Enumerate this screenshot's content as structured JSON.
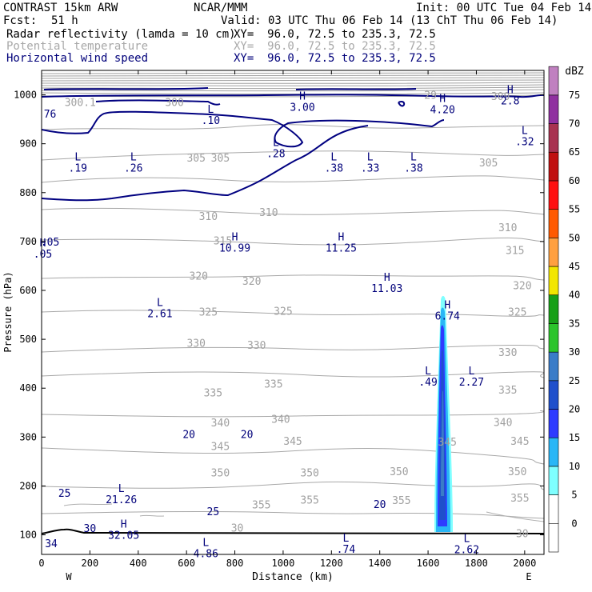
{
  "header": {
    "model": "CONTRAST 15km ARW",
    "center": "NCAR/MMM",
    "init": "Init: 00 UTC Tue 04 Feb 14",
    "fcst_label": "Fcst:",
    "fcst_value": "51 h",
    "valid": "Valid: 03 UTC Thu 06 Feb 14 (13 ChT Thu 06 Feb 14)",
    "fields": [
      {
        "name": "Radar reflectivity (lamda = 10 cm)",
        "xy": "XY=  96.0, 72.5 to 235.3, 72.5"
      },
      {
        "name": "Potential temperature",
        "xy": "XY=  96.0, 72.5 to 235.3, 72.5"
      },
      {
        "name": "Horizontal wind speed",
        "xy": "XY=  96.0, 72.5 to 235.3, 72.5"
      }
    ]
  },
  "chart_data": {
    "type": "contour-cross-section",
    "xlabel": "Distance (km)",
    "ylabel": "Pressure (hPa)",
    "xlim": [
      0,
      2080
    ],
    "ylim": [
      1050,
      60
    ],
    "x_ticks": [
      0,
      200,
      400,
      600,
      800,
      1000,
      1200,
      1400,
      1600,
      1800,
      2000
    ],
    "y_ticks": [
      100,
      200,
      300,
      400,
      500,
      600,
      700,
      800,
      900,
      1000
    ],
    "x_end_labels": {
      "left": "W",
      "right": "E"
    },
    "colorbar": {
      "unit": "dBZ",
      "levels": [
        0,
        5,
        10,
        15,
        20,
        25,
        30,
        35,
        40,
        45,
        50,
        55,
        60,
        65,
        70,
        75
      ],
      "colors": [
        "#ffffff",
        "#7fffff",
        "#29b6f6",
        "#2e3bff",
        "#1f4fcc",
        "#3a7cc8",
        "#2cc42c",
        "#18a018",
        "#f2e600",
        "#ffa040",
        "#ff5a00",
        "#ff1010",
        "#c01010",
        "#a83250",
        "#9030a0",
        "#c080c0"
      ]
    },
    "theta_labels": [
      {
        "v": "355",
        "x": 910,
        "p": 162
      },
      {
        "v": "355",
        "x": 1110,
        "p": 172
      },
      {
        "v": "355",
        "x": 1490,
        "p": 171
      },
      {
        "v": "355",
        "x": 1980,
        "p": 176
      },
      {
        "v": "350",
        "x": 740,
        "p": 228
      },
      {
        "v": "350",
        "x": 1110,
        "p": 228
      },
      {
        "v": "350",
        "x": 1480,
        "p": 230
      },
      {
        "v": "350",
        "x": 1970,
        "p": 230
      },
      {
        "v": "345",
        "x": 740,
        "p": 282
      },
      {
        "v": "345",
        "x": 1040,
        "p": 292
      },
      {
        "v": "345",
        "x": 1680,
        "p": 291
      },
      {
        "v": "345",
        "x": 1980,
        "p": 292
      },
      {
        "v": "340",
        "x": 740,
        "p": 330
      },
      {
        "v": "340",
        "x": 990,
        "p": 337
      },
      {
        "v": "340",
        "x": 1910,
        "p": 331
      },
      {
        "v": "335",
        "x": 710,
        "p": 391
      },
      {
        "v": "335",
        "x": 960,
        "p": 409
      },
      {
        "v": "335",
        "x": 1930,
        "p": 397
      },
      {
        "v": "330",
        "x": 640,
        "p": 493
      },
      {
        "v": "330",
        "x": 890,
        "p": 489
      },
      {
        "v": "330",
        "x": 1930,
        "p": 474
      },
      {
        "v": "325",
        "x": 690,
        "p": 557
      },
      {
        "v": "325",
        "x": 1000,
        "p": 558
      },
      {
        "v": "325",
        "x": 1970,
        "p": 557
      },
      {
        "v": "320",
        "x": 650,
        "p": 630
      },
      {
        "v": "320",
        "x": 870,
        "p": 620
      },
      {
        "v": "320",
        "x": 1990,
        "p": 611
      },
      {
        "v": "315",
        "x": 750,
        "p": 702
      },
      {
        "v": "315",
        "x": 1960,
        "p": 683
      },
      {
        "v": "310",
        "x": 690,
        "p": 752
      },
      {
        "v": "310",
        "x": 940,
        "p": 760
      },
      {
        "v": "310",
        "x": 1930,
        "p": 729
      },
      {
        "v": "305",
        "x": 640,
        "p": 872
      },
      {
        "v": "305",
        "x": 740,
        "p": 872
      },
      {
        "v": "305",
        "x": 1850,
        "p": 862
      },
      {
        "v": "300.1",
        "x": 160,
        "p": 985
      },
      {
        "v": "300",
        "x": 550,
        "p": 985
      },
      {
        "v": "300",
        "x": 1900,
        "p": 998
      },
      {
        "v": "29",
        "x": 1610,
        "p": 1000
      },
      {
        "v": "30",
        "x": 1990,
        "p": 103
      },
      {
        "v": "30",
        "x": 810,
        "p": 115
      }
    ],
    "wind_labels": [
      {
        "v": "34",
        "x": 40,
        "p": 83
      },
      {
        "v": "30",
        "x": 200,
        "p": 114
      },
      {
        "v": "25",
        "x": 710,
        "p": 148
      },
      {
        "v": "25",
        "x": 95,
        "p": 186
      },
      {
        "v": "20",
        "x": 1400,
        "p": 163
      },
      {
        "v": "20",
        "x": 610,
        "p": 306
      },
      {
        "v": "20",
        "x": 850,
        "p": 306
      },
      {
        "v": "76",
        "x": 35,
        "p": 962
      },
      {
        "v": ".05",
        "x": 35,
        "p": 700
      }
    ],
    "extrema": [
      {
        "t": "L",
        "v": "4.86",
        "x": 680,
        "p": 77
      },
      {
        "t": "L",
        "v": ".74",
        "x": 1260,
        "p": 86
      },
      {
        "t": "L",
        "v": "2.62",
        "x": 1760,
        "p": 85
      },
      {
        "t": "H",
        "v": "32.05",
        "x": 340,
        "p": 115
      },
      {
        "t": "L",
        "v": "21.26",
        "x": 330,
        "p": 188
      },
      {
        "t": "L",
        "v": ".49",
        "x": 1600,
        "p": 428
      },
      {
        "t": "L",
        "v": "2.27",
        "x": 1780,
        "p": 428
      },
      {
        "t": "L",
        "v": "2.61",
        "x": 490,
        "p": 568
      },
      {
        "t": "H",
        "v": "6.74",
        "x": 1680,
        "p": 563
      },
      {
        "t": "H",
        "v": "11.03",
        "x": 1430,
        "p": 620
      },
      {
        "t": "H",
        "v": "10.99",
        "x": 800,
        "p": 702
      },
      {
        "t": "H",
        "v": "11.25",
        "x": 1240,
        "p": 702
      },
      {
        "t": "H",
        "v": ".05",
        "x": 5,
        "p": 690
      },
      {
        "t": "L",
        "v": ".19",
        "x": 150,
        "p": 866
      },
      {
        "t": "L",
        "v": ".26",
        "x": 380,
        "p": 866
      },
      {
        "t": "L",
        "v": ".38",
        "x": 1210,
        "p": 866
      },
      {
        "t": "L",
        "v": ".33",
        "x": 1360,
        "p": 866
      },
      {
        "t": "L",
        "v": ".38",
        "x": 1540,
        "p": 866
      },
      {
        "t": "L",
        "v": ".28",
        "x": 970,
        "p": 895
      },
      {
        "t": "L",
        "v": ".32",
        "x": 2000,
        "p": 920
      },
      {
        "t": "L",
        "v": ".10",
        "x": 700,
        "p": 963
      },
      {
        "t": "H",
        "v": "3.00",
        "x": 1080,
        "p": 990
      },
      {
        "t": "H",
        "v": "4.20",
        "x": 1660,
        "p": 985
      },
      {
        "t": "H",
        "v": "2.8",
        "x": 1940,
        "p": 1003
      }
    ]
  }
}
